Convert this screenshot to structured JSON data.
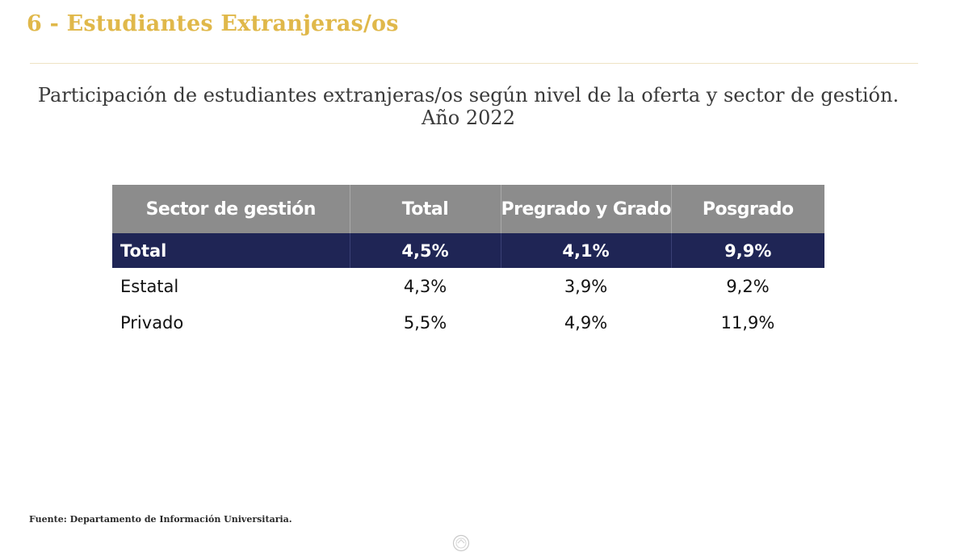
{
  "header": {
    "title": "6 - Estudiantes Extranjeras/os"
  },
  "subtitle": {
    "line1": "Participación de estudiantes extranjeras/os según nivel de la oferta y sector de gestión.",
    "line2": "Año 2022"
  },
  "table": {
    "columns": [
      "Sector de gestión",
      "Total",
      "Pregrado y Grado",
      "Posgrado"
    ],
    "rows": [
      {
        "label": "Total",
        "total": "4,5%",
        "pregrado": "4,1%",
        "posgrado": "9,9%"
      },
      {
        "label": "Estatal",
        "total": "4,3%",
        "pregrado": "3,9%",
        "posgrado": "9,2%"
      },
      {
        "label": "Privado",
        "total": "5,5%",
        "pregrado": "4,9%",
        "posgrado": "11,9%"
      }
    ]
  },
  "footer": {
    "source": "Fuente: Departamento de Información Universitaria."
  },
  "colors": {
    "title": "#e0b84a",
    "header_bg": "#8c8c8c",
    "total_row_bg": "#1f2555"
  },
  "icons": {
    "seal": "university-seal-icon"
  }
}
